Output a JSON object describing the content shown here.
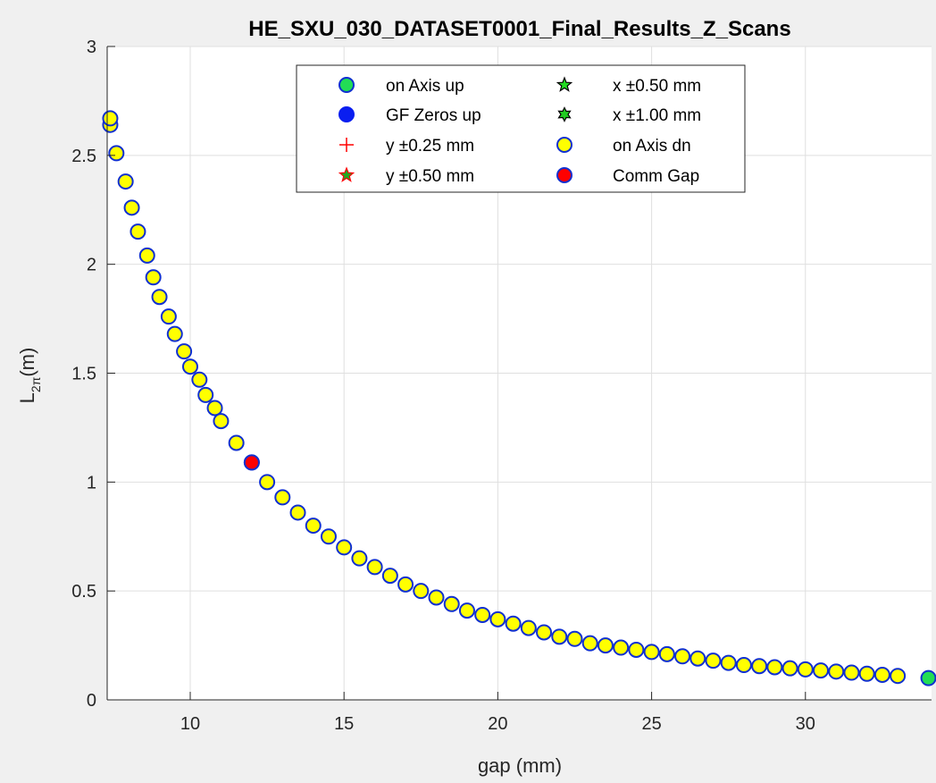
{
  "chart_data": {
    "type": "scatter",
    "title": "HE_SXU_030_DATASET0001_Final_Results_Z_Scans",
    "xlabel": "gap (mm)",
    "ylabel_main": "L",
    "ylabel_sub": "2π",
    "ylabel_unit": "(m)",
    "xlim": [
      7.3,
      34.1
    ],
    "ylim": [
      0,
      3
    ],
    "xticks": [
      10,
      15,
      20,
      25,
      30
    ],
    "xtick_labels": [
      "10",
      "15",
      "20",
      "25",
      "30"
    ],
    "yticks": [
      0,
      0.5,
      1,
      1.5,
      2,
      2.5,
      3
    ],
    "ytick_labels": [
      "0",
      "0.5",
      "1",
      "1.5",
      "2",
      "2.5",
      "3"
    ],
    "grid": true,
    "legend_position": "top",
    "legend": [
      {
        "label": "on Axis up",
        "marker": "circle",
        "fill": "#22dd55",
        "edge": "#1030d0"
      },
      {
        "label": "GF Zeros up",
        "marker": "circle",
        "fill": "#0a1ef0",
        "edge": "#0a1ef0"
      },
      {
        "label": "y ±0.25 mm",
        "marker": "plus",
        "fill": "none",
        "edge": "#ff0000"
      },
      {
        "label": "y ±0.50 mm",
        "marker": "star",
        "fill": "#22aa22",
        "edge": "#ff0000"
      },
      {
        "label": "x ±0.50 mm",
        "marker": "star",
        "fill": "#22dd22",
        "edge": "#000000"
      },
      {
        "label": "x ±1.00 mm",
        "marker": "hexagram",
        "fill": "#22cc22",
        "edge": "#000000"
      },
      {
        "label": "on Axis dn",
        "marker": "circle",
        "fill": "#ffff00",
        "edge": "#1030d0"
      },
      {
        "label": "Comm Gap",
        "marker": "circle",
        "fill": "#ff0000",
        "edge": "#1030d0"
      }
    ],
    "series": [
      {
        "name": "on Axis dn",
        "marker": "circle",
        "fill": "#ffff00",
        "edge": "#1030d0",
        "x": [
          7.4,
          7.4,
          7.6,
          7.9,
          8.1,
          8.3,
          8.6,
          8.8,
          9.0,
          9.3,
          9.5,
          9.8,
          10.0,
          10.3,
          10.5,
          10.8,
          11.0,
          11.5,
          12.0,
          12.5,
          13.0,
          13.5,
          14.0,
          14.5,
          15.0,
          15.5,
          16.0,
          16.5,
          17.0,
          17.5,
          18.0,
          18.5,
          19.0,
          19.5,
          20.0,
          20.5,
          21.0,
          21.5,
          22.0,
          22.5,
          23.0,
          23.5,
          24.0,
          24.5,
          25.0,
          25.5,
          26.0,
          26.5,
          27.0,
          27.5,
          28.0,
          28.5,
          29.0,
          29.5,
          30.0,
          30.5,
          31.0,
          31.5,
          32.0,
          32.5,
          33.0
        ],
        "y": [
          2.64,
          2.67,
          2.51,
          2.38,
          2.26,
          2.15,
          2.04,
          1.94,
          1.85,
          1.76,
          1.68,
          1.6,
          1.53,
          1.47,
          1.4,
          1.34,
          1.28,
          1.18,
          1.09,
          1.0,
          0.93,
          0.86,
          0.8,
          0.75,
          0.7,
          0.65,
          0.61,
          0.57,
          0.53,
          0.5,
          0.47,
          0.44,
          0.41,
          0.39,
          0.37,
          0.35,
          0.33,
          0.31,
          0.29,
          0.28,
          0.26,
          0.25,
          0.24,
          0.23,
          0.22,
          0.21,
          0.2,
          0.19,
          0.18,
          0.17,
          0.16,
          0.155,
          0.15,
          0.145,
          0.14,
          0.135,
          0.13,
          0.125,
          0.12,
          0.115,
          0.11
        ]
      },
      {
        "name": "Comm Gap",
        "marker": "circle",
        "fill": "#ff0000",
        "edge": "#1030d0",
        "x": [
          12.0
        ],
        "y": [
          1.09
        ]
      },
      {
        "name": "on Axis up",
        "marker": "circle",
        "fill": "#22dd55",
        "edge": "#1030d0",
        "x": [
          34.0
        ],
        "y": [
          0.1
        ]
      }
    ]
  }
}
